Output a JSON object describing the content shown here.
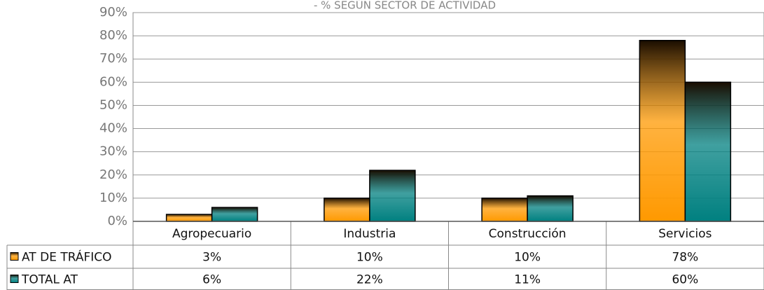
{
  "chart_data": {
    "type": "bar",
    "title": "- % SEGÚN SECTOR DE ACTIVIDAD",
    "categories": [
      "Agropecuario",
      "Industria",
      "Construcción",
      "Servicios"
    ],
    "series": [
      {
        "name": "AT DE TRÁFICO",
        "color": "#ff9900",
        "values": [
          3,
          10,
          10,
          78
        ],
        "value_labels": [
          "3%",
          "10%",
          "10%",
          "78%"
        ]
      },
      {
        "name": "TOTAL AT",
        "color": "#008080",
        "values": [
          6,
          22,
          11,
          60
        ],
        "value_labels": [
          "6%",
          "22%",
          "11%",
          "60%"
        ]
      }
    ],
    "ylim": [
      0,
      90
    ],
    "yticks": [
      {
        "value": 0,
        "label": "0%"
      },
      {
        "value": 10,
        "label": "10%"
      },
      {
        "value": 20,
        "label": "20%"
      },
      {
        "value": 30,
        "label": "30%"
      },
      {
        "value": 40,
        "label": "40%"
      },
      {
        "value": 50,
        "label": "50%"
      },
      {
        "value": 60,
        "label": "60%"
      },
      {
        "value": 70,
        "label": "70%"
      },
      {
        "value": 80,
        "label": "80%"
      },
      {
        "value": 90,
        "label": "90%"
      }
    ],
    "grid": true
  }
}
